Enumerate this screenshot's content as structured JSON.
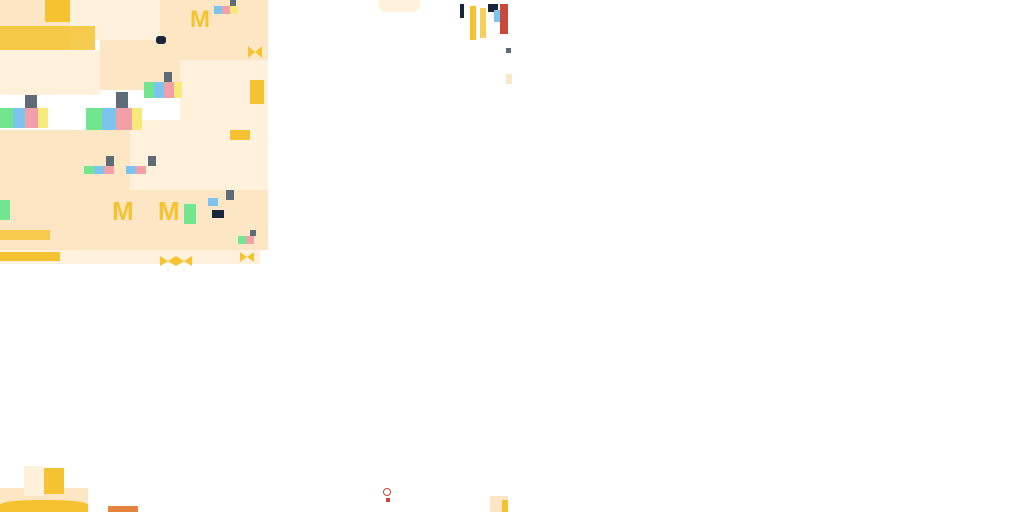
{
  "atlas": {
    "logo_glyph": "M",
    "icons": [
      "m-arches-logo-icon",
      "palette-blocks-icon",
      "chair-icon",
      "bow-icon"
    ]
  },
  "palette": {
    "cream": "#fde6c4",
    "light_cream": "#fff1dc",
    "gold": "#f5c331",
    "green": "#72e58f",
    "blue": "#7cc3ef",
    "pink": "#f2a0a8",
    "yellow": "#f6ea7b",
    "slate": "#5f6b78",
    "navy": "#17263d",
    "orange": "#e4843e",
    "red": "#c8483a"
  }
}
